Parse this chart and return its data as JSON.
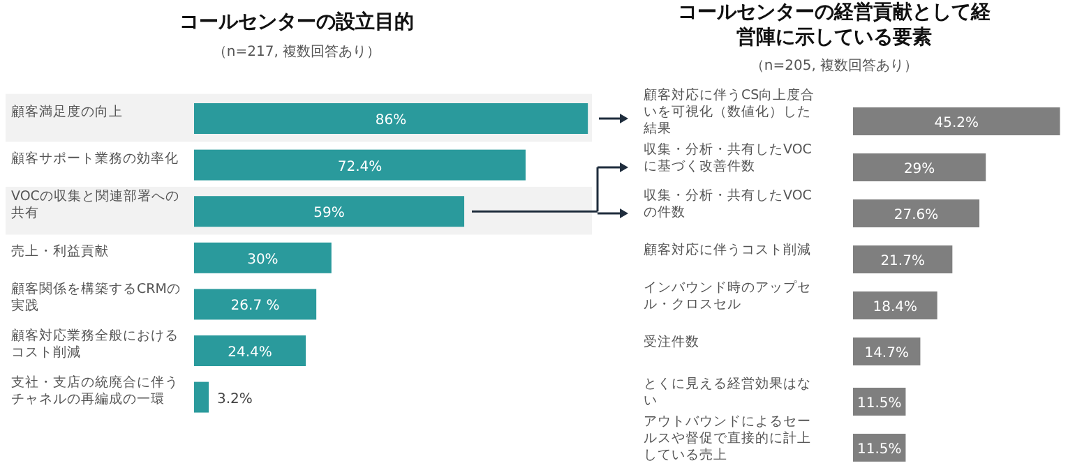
{
  "chart_data": [
    {
      "type": "bar",
      "orientation": "horizontal",
      "title": "コールセンターの設立目的",
      "subtitle": "（n=217, 複数回答あり）",
      "categories": [
        "顧客満足度の向上",
        "顧客サポート業務の効率化",
        "VOCの収集と関連部署への共有",
        "売上・利益貢献",
        "顧客関係を構築するCRMの実践",
        "顧客対応業務全般におけるコスト削減",
        "支社・支店の統廃合に伴うチャネルの再編成の一環"
      ],
      "series": [
        {
          "color": "#2a9a9c",
          "values": [
            86,
            72.4,
            59,
            30,
            26.7,
            24.4,
            3.2
          ],
          "value_labels": [
            "86%",
            "72.4%",
            "59%",
            "30%",
            "26.7 %",
            "24.4%",
            "3.2%"
          ]
        }
      ],
      "bands": [
        {
          "axis": "y",
          "from": "顧客満足度の向上",
          "to": "顧客満足度の向上",
          "color": "#f2f2f2"
        },
        {
          "axis": "y",
          "from": "VOCの収集と関連部署への共有",
          "to": "VOCの収集と関連部署への共有",
          "color": "#f2f2f2"
        }
      ]
    },
    {
      "type": "bar",
      "orientation": "horizontal",
      "title": "コールセンターの経営貢献として経営陣に示している要素",
      "subtitle": "（n=205, 複数回答あり）",
      "categories": [
        "顧客対応に伴うCS向上度合いを可視化（数値化）した結果",
        "収集・分析・共有したVOCに基づく改善件数",
        "収集・分析・共有したVOCの件数",
        "顧客対応に伴うコスト削減",
        "インバウンド時のアップセル・クロスセル",
        "受注件数",
        "とくに見える経営効果はない",
        "アウトバウンドによるセールスや督促で直接的に計上している売上"
      ],
      "series": [
        {
          "color": "#7f7f7f",
          "values": [
            45.2,
            29,
            27.6,
            21.7,
            18.4,
            14.7,
            11.5,
            11.5
          ],
          "value_labels": [
            "45.2%",
            "29%",
            "27.6%",
            "21.7%",
            "18.4%",
            "14.7%",
            "11.5%",
            "11.5%"
          ]
        }
      ]
    }
  ]
}
